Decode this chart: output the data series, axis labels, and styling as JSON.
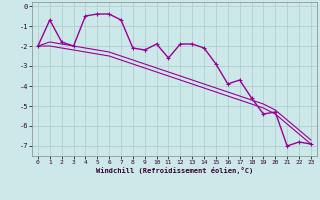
{
  "xlabel": "Windchill (Refroidissement éolien,°C)",
  "bg_color": "#cce8e8",
  "grid_color": "#aacccc",
  "line_color": "#990099",
  "x_values": [
    0,
    1,
    2,
    3,
    4,
    5,
    6,
    7,
    8,
    9,
    10,
    11,
    12,
    13,
    14,
    15,
    16,
    17,
    18,
    19,
    20,
    21,
    22,
    23
  ],
  "y_windchill": [
    -2.0,
    -0.7,
    -1.8,
    -2.0,
    -0.5,
    -0.4,
    -0.4,
    -0.7,
    -2.1,
    -2.2,
    -1.9,
    -2.6,
    -1.9,
    -1.9,
    -2.1,
    -2.9,
    -3.9,
    -3.7,
    -4.6,
    -5.4,
    -5.3,
    -7.0,
    -6.8,
    -6.9
  ],
  "y_min": [
    -2.0,
    -2.0,
    -2.1,
    -2.2,
    -2.3,
    -2.4,
    -2.5,
    -2.7,
    -2.9,
    -3.1,
    -3.3,
    -3.5,
    -3.7,
    -3.9,
    -4.1,
    -4.3,
    -4.5,
    -4.7,
    -4.9,
    -5.1,
    -5.4,
    -5.9,
    -6.4,
    -6.9
  ],
  "y_max": [
    -2.0,
    -1.8,
    -1.9,
    -2.0,
    -2.1,
    -2.2,
    -2.3,
    -2.5,
    -2.7,
    -2.9,
    -3.1,
    -3.3,
    -3.5,
    -3.7,
    -3.9,
    -4.1,
    -4.3,
    -4.5,
    -4.7,
    -4.9,
    -5.2,
    -5.7,
    -6.2,
    -6.7
  ],
  "ylim": [
    -7.5,
    0.2
  ],
  "yticks": [
    0,
    -1,
    -2,
    -3,
    -4,
    -5,
    -6,
    -7
  ],
  "xticks": [
    0,
    1,
    2,
    3,
    4,
    5,
    6,
    7,
    8,
    9,
    10,
    11,
    12,
    13,
    14,
    15,
    16,
    17,
    18,
    19,
    20,
    21,
    22,
    23
  ]
}
